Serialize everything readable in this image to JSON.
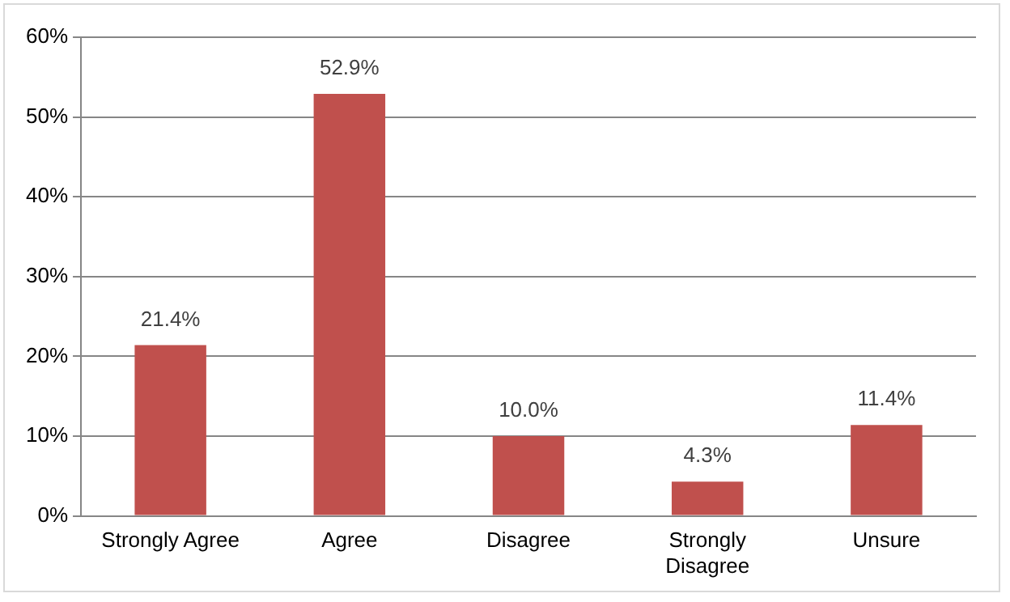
{
  "chart_data": {
    "type": "bar",
    "categories": [
      "Strongly Agree",
      "Agree",
      "Disagree",
      "Strongly Disagree",
      "Unsure"
    ],
    "values": [
      21.4,
      52.9,
      10.0,
      4.3,
      11.4
    ],
    "value_labels": [
      "21.4%",
      "52.9%",
      "10.0%",
      "4.3%",
      "11.4%"
    ],
    "color": "#c0504d",
    "ylim": [
      0,
      60
    ],
    "yticks": [
      {
        "value": 0,
        "label": "0%"
      },
      {
        "value": 10,
        "label": "10%"
      },
      {
        "value": 20,
        "label": "20%"
      },
      {
        "value": 30,
        "label": "30%"
      },
      {
        "value": 40,
        "label": "40%"
      },
      {
        "value": 50,
        "label": "50%"
      },
      {
        "value": 60,
        "label": "60%"
      }
    ],
    "grid": "y",
    "legend": false
  }
}
